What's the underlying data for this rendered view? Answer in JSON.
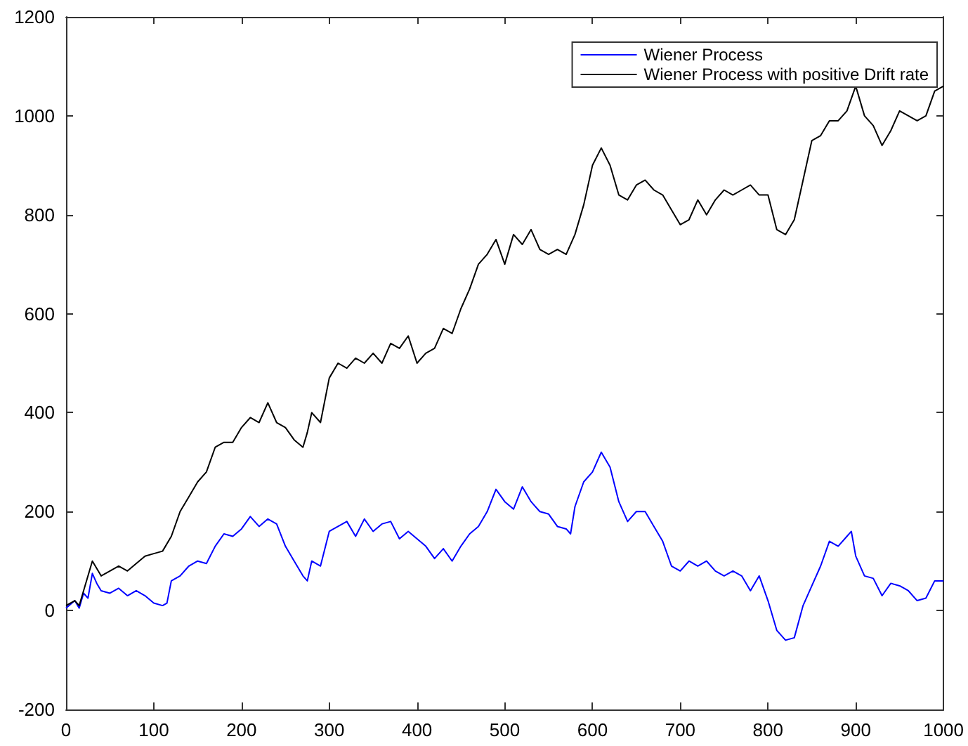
{
  "chart_data": {
    "type": "line",
    "legend": "top right",
    "grid": false,
    "xlim": [
      0,
      1000
    ],
    "ylim": [
      -200,
      1200
    ],
    "xticks": [
      0,
      100,
      200,
      300,
      400,
      500,
      600,
      700,
      800,
      900,
      1000
    ],
    "yticks": [
      -200,
      0,
      200,
      400,
      600,
      800,
      1000,
      1200
    ],
    "series": [
      {
        "name": "Wiener Process",
        "color": "#0000ff",
        "x": [
          0,
          10,
          15,
          20,
          25,
          30,
          35,
          40,
          50,
          60,
          70,
          80,
          90,
          100,
          110,
          115,
          120,
          130,
          140,
          150,
          160,
          170,
          180,
          190,
          200,
          210,
          220,
          230,
          240,
          250,
          260,
          270,
          275,
          280,
          290,
          300,
          310,
          320,
          330,
          340,
          350,
          360,
          370,
          380,
          390,
          400,
          410,
          420,
          430,
          440,
          450,
          460,
          470,
          480,
          490,
          500,
          510,
          520,
          530,
          540,
          550,
          560,
          570,
          575,
          580,
          590,
          600,
          610,
          620,
          630,
          640,
          650,
          660,
          670,
          680,
          690,
          700,
          710,
          720,
          730,
          740,
          750,
          760,
          770,
          780,
          790,
          800,
          810,
          820,
          830,
          840,
          850,
          860,
          870,
          880,
          890,
          895,
          900,
          910,
          920,
          930,
          940,
          950,
          960,
          970,
          980,
          990,
          1000
        ],
        "values": [
          5,
          20,
          5,
          35,
          25,
          75,
          55,
          40,
          35,
          45,
          30,
          40,
          30,
          15,
          10,
          15,
          60,
          70,
          90,
          100,
          95,
          130,
          155,
          150,
          165,
          190,
          170,
          185,
          175,
          130,
          100,
          70,
          60,
          100,
          90,
          160,
          170,
          180,
          150,
          185,
          160,
          175,
          180,
          145,
          160,
          145,
          130,
          105,
          125,
          100,
          130,
          155,
          170,
          200,
          245,
          220,
          205,
          250,
          220,
          200,
          195,
          170,
          165,
          155,
          210,
          260,
          280,
          320,
          290,
          220,
          180,
          200,
          200,
          170,
          140,
          90,
          80,
          100,
          90,
          100,
          80,
          70,
          80,
          70,
          40,
          70,
          20,
          -40,
          -60,
          -55,
          10,
          50,
          90,
          140,
          130,
          150,
          160,
          110,
          70,
          65,
          30,
          55,
          50,
          40,
          20,
          25,
          60,
          60
        ]
      },
      {
        "name": "Wiener Process with positive Drift rate",
        "color": "#000000",
        "x": [
          0,
          10,
          15,
          20,
          30,
          40,
          50,
          60,
          70,
          80,
          90,
          100,
          110,
          120,
          130,
          140,
          150,
          160,
          170,
          180,
          190,
          200,
          210,
          220,
          230,
          240,
          250,
          260,
          270,
          275,
          280,
          290,
          300,
          310,
          320,
          330,
          340,
          350,
          360,
          370,
          380,
          390,
          400,
          410,
          420,
          430,
          440,
          450,
          460,
          470,
          480,
          490,
          500,
          510,
          520,
          530,
          540,
          550,
          560,
          570,
          580,
          590,
          600,
          610,
          620,
          630,
          640,
          650,
          660,
          670,
          680,
          690,
          700,
          710,
          720,
          730,
          740,
          750,
          760,
          770,
          780,
          790,
          800,
          810,
          820,
          830,
          840,
          850,
          860,
          870,
          880,
          890,
          900,
          910,
          920,
          930,
          940,
          950,
          960,
          970,
          980,
          990,
          1000
        ],
        "values": [
          10,
          20,
          10,
          40,
          100,
          70,
          80,
          90,
          80,
          95,
          110,
          115,
          120,
          150,
          200,
          230,
          260,
          280,
          330,
          340,
          340,
          370,
          390,
          380,
          420,
          380,
          370,
          345,
          330,
          360,
          400,
          380,
          470,
          500,
          490,
          510,
          500,
          520,
          500,
          540,
          530,
          555,
          500,
          520,
          530,
          570,
          560,
          610,
          650,
          700,
          720,
          750,
          700,
          760,
          740,
          770,
          730,
          720,
          730,
          720,
          760,
          820,
          900,
          935,
          900,
          840,
          830,
          860,
          870,
          850,
          840,
          810,
          780,
          790,
          830,
          800,
          830,
          850,
          840,
          850,
          860,
          840,
          840,
          770,
          760,
          790,
          870,
          950,
          960,
          990,
          990,
          1010,
          1060,
          1000,
          980,
          940,
          970,
          1010,
          1000,
          990,
          1000,
          1050,
          1060
        ]
      }
    ]
  }
}
